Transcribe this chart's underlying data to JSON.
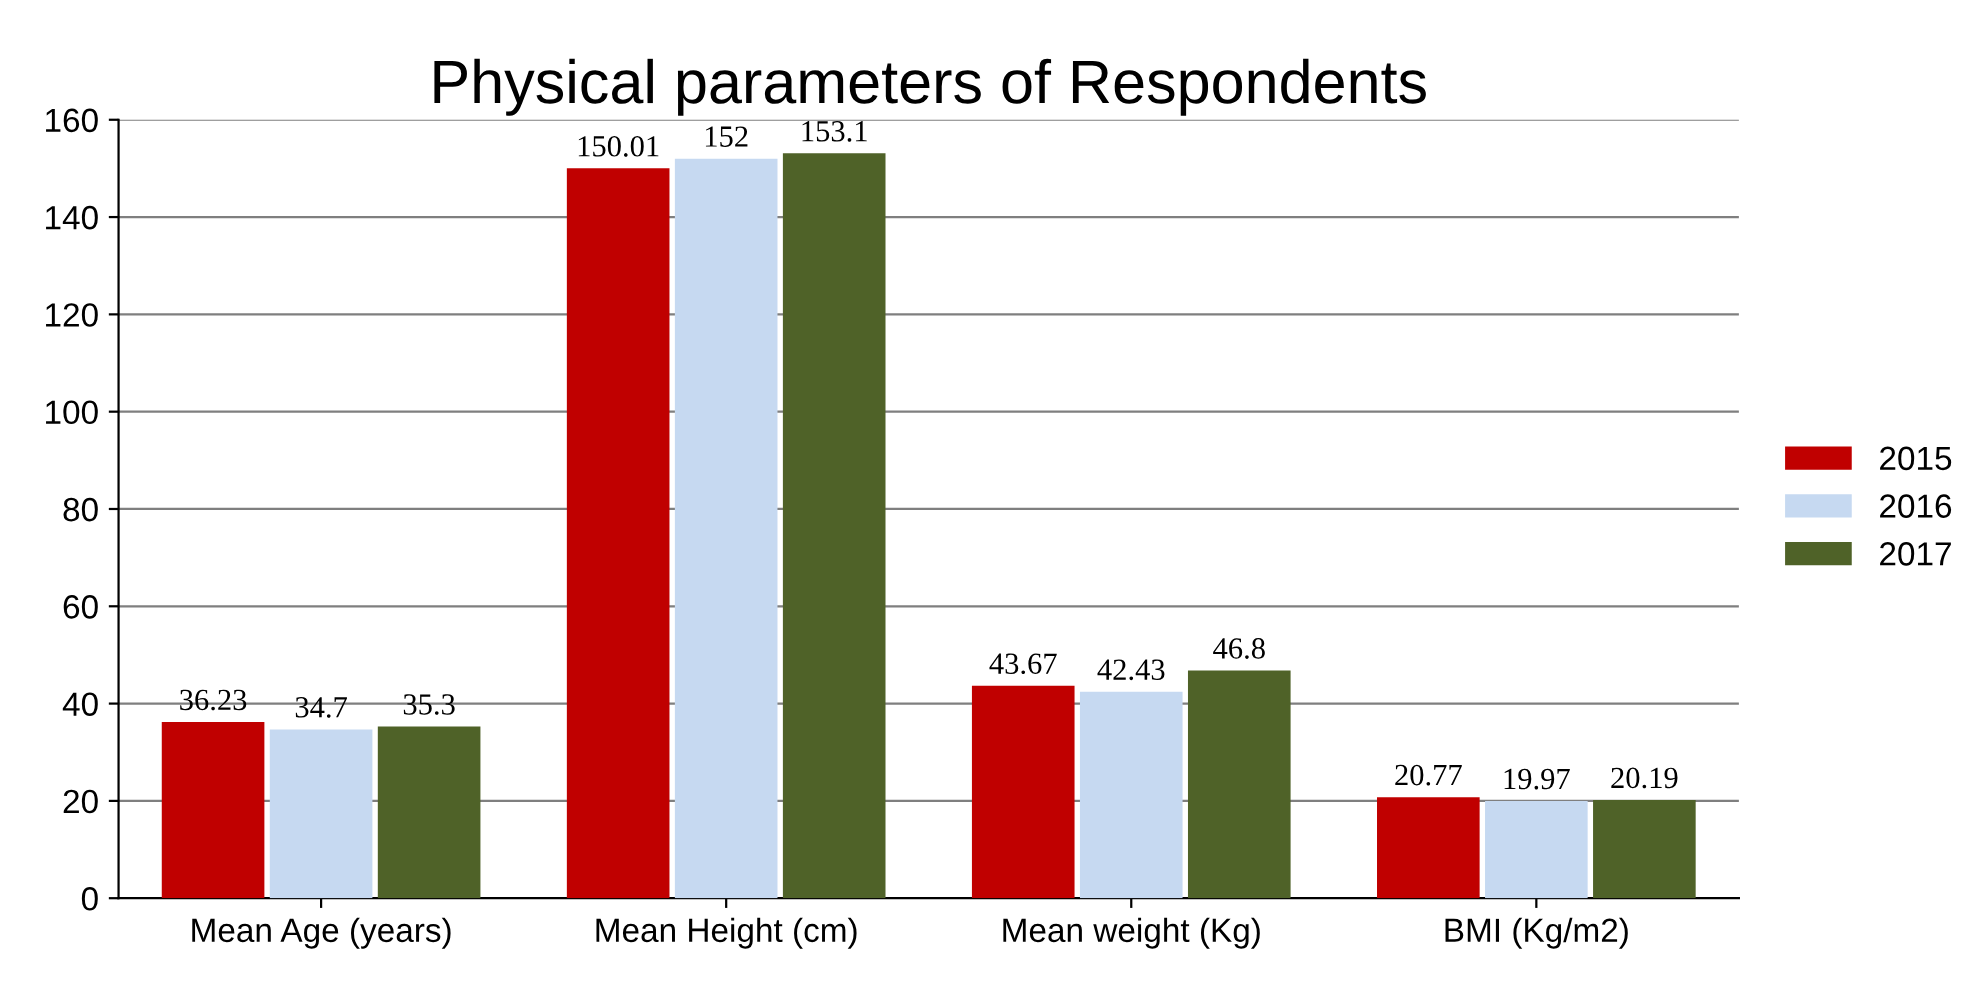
{
  "chart_data": {
    "type": "bar",
    "title": "Physical parameters of Respondents",
    "categories": [
      "Mean Age (years)",
      "Mean Height (cm)",
      "Mean weight (Kg)",
      "BMI (Kg/m2)"
    ],
    "series": [
      {
        "name": "2015",
        "color": "#c00000",
        "values": [
          36.23,
          150.01,
          43.67,
          20.77
        ]
      },
      {
        "name": "2016",
        "color": "#c6d9f1",
        "values": [
          34.7,
          152,
          42.43,
          19.97
        ]
      },
      {
        "name": "2017",
        "color": "#4f6228",
        "values": [
          35.3,
          153.1,
          46.8,
          20.19
        ]
      }
    ],
    "ylim": [
      0,
      160
    ],
    "yticks": [
      0,
      20,
      40,
      60,
      80,
      100,
      120,
      140,
      160
    ],
    "grid": "y",
    "legend": "right",
    "data_labels": true
  }
}
